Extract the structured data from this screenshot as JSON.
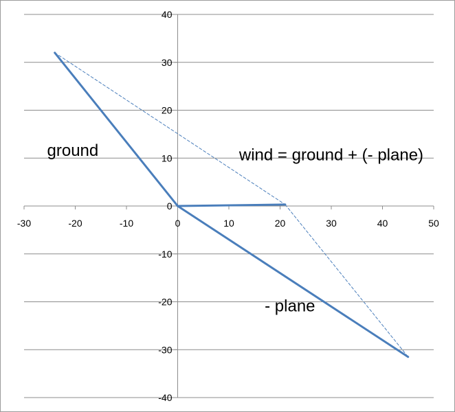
{
  "chart_data": {
    "type": "scatter",
    "title": "",
    "xlabel": "",
    "ylabel": "",
    "xlim": [
      -30,
      50
    ],
    "ylim": [
      -40,
      40
    ],
    "x_ticks": [
      -30,
      -20,
      -10,
      0,
      10,
      20,
      30,
      40,
      50
    ],
    "y_ticks": [
      -40,
      -30,
      -20,
      -10,
      0,
      10,
      20,
      30,
      40
    ],
    "grid": "horizontal",
    "legend": "none",
    "series": [
      {
        "style": "solid",
        "color": "#4a7ebb",
        "points": [
          [
            -24,
            32
          ],
          [
            0,
            0
          ]
        ]
      },
      {
        "style": "solid",
        "color": "#4a7ebb",
        "points": [
          [
            0,
            0
          ],
          [
            45,
            -31.5
          ]
        ]
      },
      {
        "style": "solid",
        "color": "#4a7ebb",
        "points": [
          [
            0,
            0
          ],
          [
            21,
            0.3
          ]
        ]
      },
      {
        "style": "dashed",
        "color": "#4a7ebb",
        "points": [
          [
            -24,
            32
          ],
          [
            21,
            0.3
          ]
        ]
      },
      {
        "style": "dashed",
        "color": "#4a7ebb",
        "points": [
          [
            21,
            0.3
          ],
          [
            45,
            -31.5
          ]
        ]
      }
    ],
    "annotations": [
      {
        "text": "ground",
        "x": -25.5,
        "y": 10.5
      },
      {
        "text": "wind = ground + (- plane)",
        "x": 12,
        "y": 9.5
      },
      {
        "text": "- plane",
        "x": 17,
        "y": -22
      }
    ]
  }
}
